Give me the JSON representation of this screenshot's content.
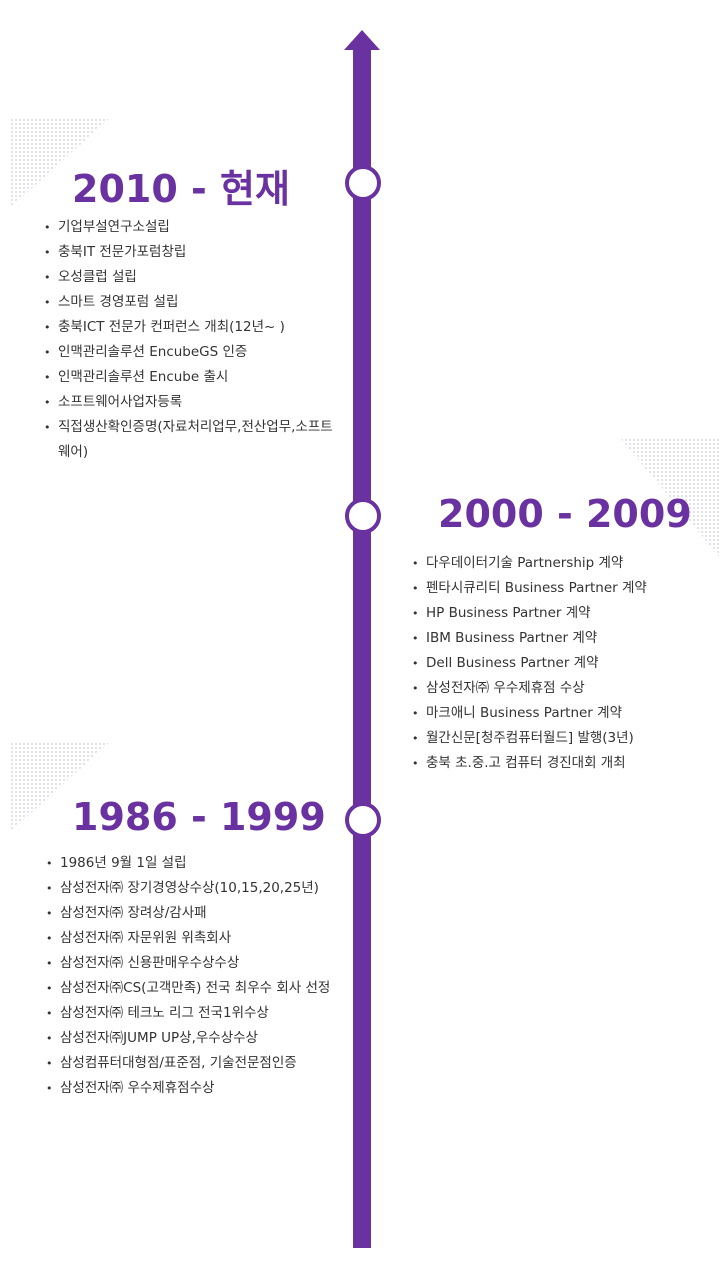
{
  "timeline": {
    "eras": [
      {
        "title": "2010 - 현재",
        "items": [
          "기업부설연구소설립",
          "충북IT 전문가포럼창립",
          "오성클럽 설립",
          "스마트 경영포럼 설립",
          "충북ICT 전문가 컨퍼런스 개최(12년~ )",
          "인맥관리솔루션 EncubeGS 인증",
          "인맥관리솔루션 Encube 출시",
          "소프트웨어사업자등록",
          "직접생산확인증명(자료처리업무,전산업무,소프트웨어)"
        ]
      },
      {
        "title": "2000 - 2009",
        "items": [
          "다우데이터기술 Partnership 계약",
          "펜타시큐리티 Business Partner 계약",
          "HP Business Partner 계약",
          "IBM Business Partner 계약",
          "Dell Business Partner 계약",
          "삼성전자㈜ 우수제휴점 수상",
          "마크애니 Business Partner 계약",
          "월간신문[청주컴퓨터월드] 발행(3년)",
          "충북 초.중.고 컴퓨터 경진대회 개최"
        ]
      },
      {
        "title": "1986 - 1999",
        "items": [
          "1986년 9월 1일 설립",
          "삼성전자㈜ 장기경영상수상(10,15,20,25년)",
          "삼성전자㈜ 장려상/감사패",
          "삼성전자㈜ 자문위원 위촉회사",
          "삼성전자㈜ 신용판매우수상수상",
          "삼성전자㈜CS(고객만족) 전국 최우수 회사 선정",
          "삼성전자㈜ 테크노 리그 전국1위수상",
          "삼성전자㈜JUMP UP상,우수상수상",
          "삼성컴퓨터대형점/표준점, 기술전문점인증",
          "삼성전자㈜ 우수제휴점수상"
        ]
      }
    ]
  },
  "colors": {
    "accent": "#6a32a0",
    "text": "#333333"
  }
}
